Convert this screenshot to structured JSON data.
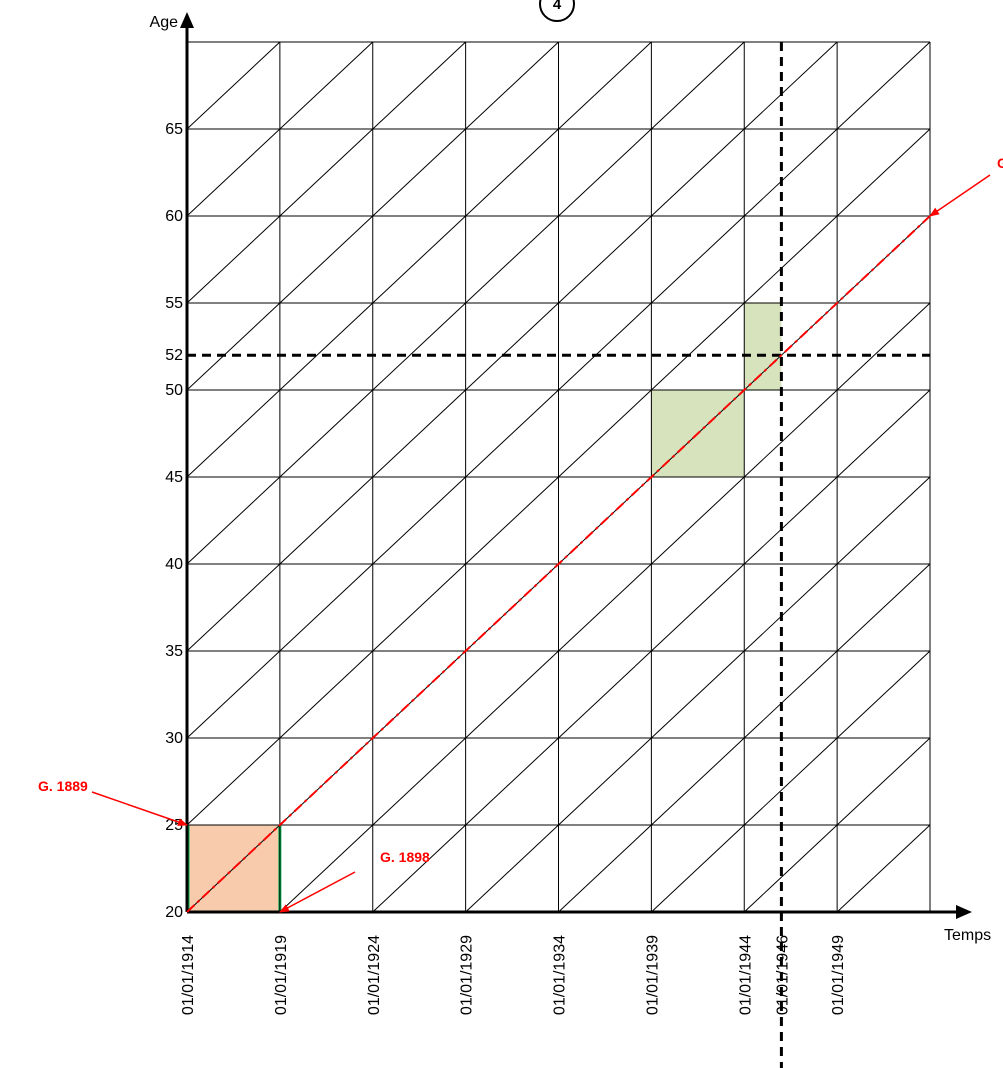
{
  "diagram": {
    "badge": "4",
    "colors": {
      "grid": "#000000",
      "cohort_line": "#ff0000",
      "annotation": "#ff0000",
      "reference_line": "#000000",
      "orange_fill": "#f8cbad",
      "green_fill": "#d6e3bc",
      "green_edge": "#00b050"
    }
  },
  "chart_data": {
    "type": "lexis-diagram",
    "xlabel": "Temps",
    "ylabel": "Age",
    "x_ticks": [
      {
        "label": "01/01/1914",
        "year": 1914
      },
      {
        "label": "01/01/1919",
        "year": 1919
      },
      {
        "label": "01/01/1924",
        "year": 1924
      },
      {
        "label": "01/01/1929",
        "year": 1929
      },
      {
        "label": "01/01/1934",
        "year": 1934
      },
      {
        "label": "01/01/1939",
        "year": 1939
      },
      {
        "label": "01/01/1944",
        "year": 1944
      },
      {
        "label": "01/01/1946",
        "year": 1946
      },
      {
        "label": "01/01/1949",
        "year": 1949
      }
    ],
    "y_ticks": [
      {
        "label": "20",
        "age": 20
      },
      {
        "label": "25",
        "age": 25
      },
      {
        "label": "30",
        "age": 30
      },
      {
        "label": "35",
        "age": 35
      },
      {
        "label": "40",
        "age": 40
      },
      {
        "label": "45",
        "age": 45
      },
      {
        "label": "50",
        "age": 50
      },
      {
        "label": "52",
        "age": 52
      },
      {
        "label": "55",
        "age": 55
      },
      {
        "label": "60",
        "age": 60
      },
      {
        "label": "65",
        "age": 65
      }
    ],
    "x_range": [
      1914,
      1954
    ],
    "y_range": [
      20,
      70
    ],
    "grid_x": [
      1914,
      1919,
      1924,
      1929,
      1934,
      1939,
      1944,
      1949,
      1954
    ],
    "grid_y": [
      20,
      25,
      30,
      35,
      40,
      45,
      50,
      55,
      60,
      65,
      70
    ],
    "reference_lines": {
      "year": 1946,
      "age": 52
    },
    "cohort_line": {
      "from": [
        1914,
        20
      ],
      "to": [
        1954,
        60
      ]
    },
    "shaded_areas": [
      {
        "color": "orange",
        "year_range": [
          1914,
          1919
        ],
        "age_range": [
          20,
          25
        ]
      },
      {
        "color": "green",
        "year_range": [
          1939,
          1944
        ],
        "age_range": [
          45,
          50
        ]
      },
      {
        "color": "green",
        "year_range": [
          1944,
          1946
        ],
        "age_range": [
          50,
          55
        ]
      }
    ],
    "annotations": [
      {
        "text": "G. 1889",
        "target": [
          1914,
          25
        ]
      },
      {
        "text": "G. 1898",
        "target": [
          1919,
          20
        ]
      },
      {
        "text": "G",
        "target": [
          1954,
          60
        ]
      }
    ]
  }
}
